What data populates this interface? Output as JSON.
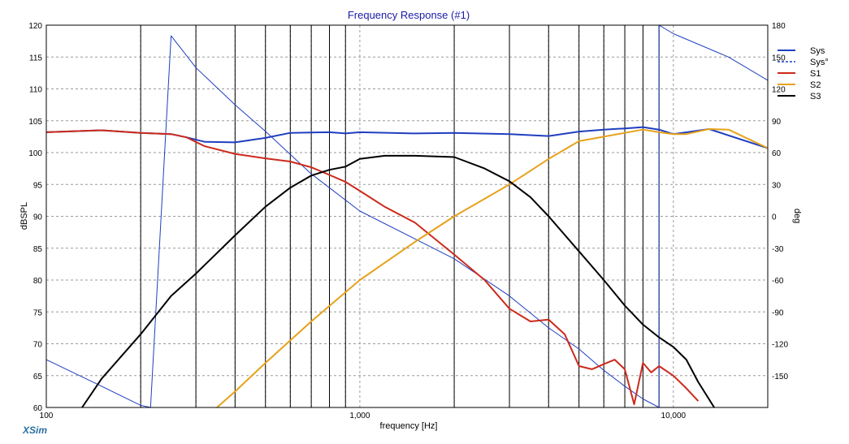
{
  "chart_data": {
    "type": "line",
    "title": "Frequency Response (#1)",
    "xlabel": "frequency [Hz]",
    "ylabel": "dBSPL",
    "y2label": "deg",
    "x_scale": "log",
    "xlim": [
      100,
      20000
    ],
    "ylim": [
      60,
      120
    ],
    "y2lim": [
      -180,
      180
    ],
    "x_tick_labels": [
      "100",
      "1,000",
      "10,000"
    ],
    "y_tick_labels": [
      "60",
      "65",
      "70",
      "75",
      "80",
      "85",
      "90",
      "95",
      "100",
      "105",
      "110",
      "115",
      "120"
    ],
    "y2_tick_labels": [
      "-150",
      "-120",
      "-90",
      "-60",
      "-30",
      "0",
      "30",
      "60",
      "90",
      "120",
      "150",
      "180"
    ],
    "grid": true,
    "legend_position": "top-right",
    "brand": "XSim",
    "series": [
      {
        "name": "Sys",
        "color": "#1f3fbf",
        "axis": "left",
        "x": [
          100,
          150,
          200,
          250,
          280,
          320,
          400,
          500,
          600,
          800,
          900,
          1000,
          1500,
          2000,
          3000,
          4000,
          5000,
          6000,
          7000,
          8000,
          9000,
          10000,
          13000,
          20000
        ],
        "y": [
          103.2,
          103.5,
          103.1,
          102.9,
          102.4,
          101.7,
          101.6,
          102.3,
          103.1,
          103.2,
          103.0,
          103.2,
          103.0,
          103.1,
          102.9,
          102.6,
          103.3,
          103.6,
          103.8,
          104.0,
          103.6,
          102.9,
          103.7,
          100.7
        ]
      },
      {
        "name": "Sys°",
        "color": "#1f3fbf",
        "dashed": true,
        "axis": "right",
        "x": [
          100,
          150,
          200,
          215,
          250,
          300,
          400,
          500,
          700,
          1000,
          2000,
          3000,
          4000,
          5000,
          6000,
          7000,
          8000,
          9000,
          9000,
          10000,
          15000,
          20000
        ],
        "y": [
          -135,
          -160,
          -178,
          -180,
          170,
          140,
          105,
          80,
          40,
          5,
          -40,
          -75,
          -105,
          -125,
          -145,
          -160,
          -172,
          -180,
          180,
          172,
          150,
          128
        ]
      },
      {
        "name": "S1",
        "color": "#cc2a1c",
        "axis": "left",
        "x": [
          100,
          150,
          200,
          250,
          280,
          320,
          400,
          500,
          600,
          700,
          800,
          900,
          1000,
          1200,
          1500,
          2000,
          2500,
          3000,
          3500,
          4000,
          4500,
          5000,
          5500,
          6000,
          6500,
          7000,
          7500,
          8000,
          8500,
          9000,
          10000,
          11000,
          12000
        ],
        "y": [
          103.2,
          103.5,
          103.1,
          102.9,
          102.4,
          101.0,
          99.8,
          99.1,
          98.6,
          97.7,
          96.5,
          95.4,
          94.0,
          91.5,
          89.0,
          84.0,
          80.0,
          75.5,
          73.5,
          73.8,
          71.5,
          66.5,
          66.0,
          66.8,
          67.5,
          66.0,
          60.5,
          67.0,
          65.5,
          66.5,
          65.0,
          63.0,
          61.0
        ]
      },
      {
        "name": "S2",
        "color": "#e6a21c",
        "axis": "left",
        "x": [
          350,
          400,
          500,
          700,
          1000,
          1500,
          2000,
          3000,
          4000,
          5000,
          6000,
          7000,
          8000,
          9000,
          10000,
          11000,
          13000,
          15000,
          20000
        ],
        "y": [
          60,
          62.5,
          67,
          73.5,
          80,
          86,
          90,
          95,
          99,
          101.8,
          102.5,
          103.1,
          103.6,
          103.2,
          102.9,
          102.9,
          103.7,
          103.6,
          100.7
        ]
      },
      {
        "name": "S3",
        "color": "#000000",
        "axis": "left",
        "x": [
          130,
          150,
          200,
          250,
          300,
          400,
          500,
          600,
          700,
          800,
          900,
          1000,
          1200,
          1500,
          2000,
          2500,
          3000,
          3500,
          4000,
          5000,
          6000,
          7000,
          8000,
          9000,
          10000,
          11000,
          12000,
          13500
        ],
        "y": [
          60,
          64.5,
          71.5,
          77.5,
          81,
          87,
          91.5,
          94.5,
          96.4,
          97.3,
          97.8,
          99.0,
          99.5,
          99.5,
          99.3,
          97.5,
          95.5,
          93.0,
          90.0,
          84.5,
          80.0,
          76.0,
          73.0,
          71.0,
          69.5,
          67.5,
          64.0,
          60
        ]
      }
    ]
  }
}
